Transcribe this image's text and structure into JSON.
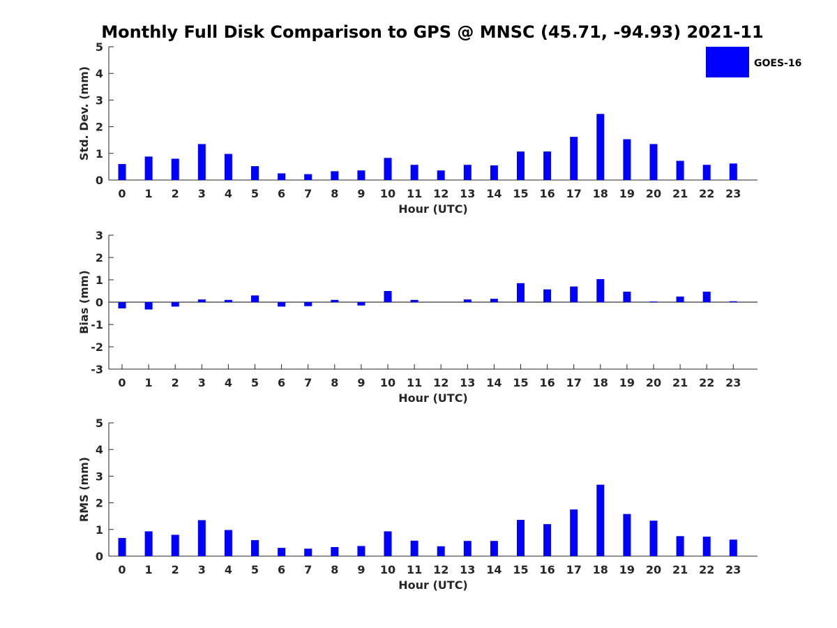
{
  "chart_data": {
    "title": "Monthly Full Disk Comparison to GPS @ MNSC (45.71, -94.93) 2021-11",
    "legend": {
      "label": "GOES-16",
      "color": "#0000ff",
      "placement": "top-right"
    },
    "panels": [
      {
        "type": "bar",
        "name": "std-dev",
        "xlabel": "Hour (UTC)",
        "ylabel": "Std. Dev. (mm)",
        "ylim": [
          0,
          5
        ],
        "yticks": [
          "0",
          "1",
          "2",
          "3",
          "4",
          "5"
        ],
        "categories": [
          "0",
          "1",
          "2",
          "3",
          "4",
          "5",
          "6",
          "7",
          "8",
          "9",
          "10",
          "11",
          "12",
          "13",
          "14",
          "15",
          "16",
          "17",
          "18",
          "19",
          "20",
          "21",
          "22",
          "23"
        ],
        "series": [
          {
            "name": "GOES-16",
            "values": [
              0.6,
              0.88,
              0.8,
              1.35,
              0.98,
              0.52,
              0.25,
              0.22,
              0.33,
              0.36,
              0.83,
              0.57,
              0.36,
              0.57,
              0.55,
              1.07,
              1.07,
              1.62,
              2.48,
              1.53,
              1.35,
              0.72,
              0.57,
              0.62
            ]
          }
        ]
      },
      {
        "type": "bar",
        "name": "bias",
        "xlabel": "Hour (UTC)",
        "ylabel": "Bias (mm)",
        "ylim": [
          -3,
          3
        ],
        "yticks": [
          "-3",
          "-2",
          "-1",
          "0",
          "1",
          "2",
          "3"
        ],
        "categories": [
          "0",
          "1",
          "2",
          "3",
          "4",
          "5",
          "6",
          "7",
          "8",
          "9",
          "10",
          "11",
          "12",
          "13",
          "14",
          "15",
          "16",
          "17",
          "18",
          "19",
          "20",
          "21",
          "22",
          "23"
        ],
        "series": [
          {
            "name": "GOES-16",
            "values": [
              -0.28,
              -0.33,
              -0.2,
              0.12,
              0.1,
              0.3,
              -0.2,
              -0.18,
              0.1,
              -0.15,
              0.5,
              0.1,
              0.0,
              0.12,
              0.15,
              0.85,
              0.57,
              0.7,
              1.03,
              0.47,
              0.03,
              0.25,
              0.47,
              0.04
            ]
          }
        ]
      },
      {
        "type": "bar",
        "name": "rms",
        "xlabel": "Hour (UTC)",
        "ylabel": "RMS (mm)",
        "ylim": [
          0,
          5
        ],
        "yticks": [
          "0",
          "1",
          "2",
          "3",
          "4",
          "5"
        ],
        "categories": [
          "0",
          "1",
          "2",
          "3",
          "4",
          "5",
          "6",
          "7",
          "8",
          "9",
          "10",
          "11",
          "12",
          "13",
          "14",
          "15",
          "16",
          "17",
          "18",
          "19",
          "20",
          "21",
          "22",
          "23"
        ],
        "series": [
          {
            "name": "GOES-16",
            "values": [
              0.68,
              0.93,
              0.8,
              1.35,
              0.98,
              0.6,
              0.31,
              0.28,
              0.34,
              0.38,
              0.93,
              0.58,
              0.37,
              0.57,
              0.57,
              1.36,
              1.2,
              1.75,
              2.68,
              1.58,
              1.33,
              0.75,
              0.73,
              0.62
            ]
          }
        ]
      }
    ]
  }
}
